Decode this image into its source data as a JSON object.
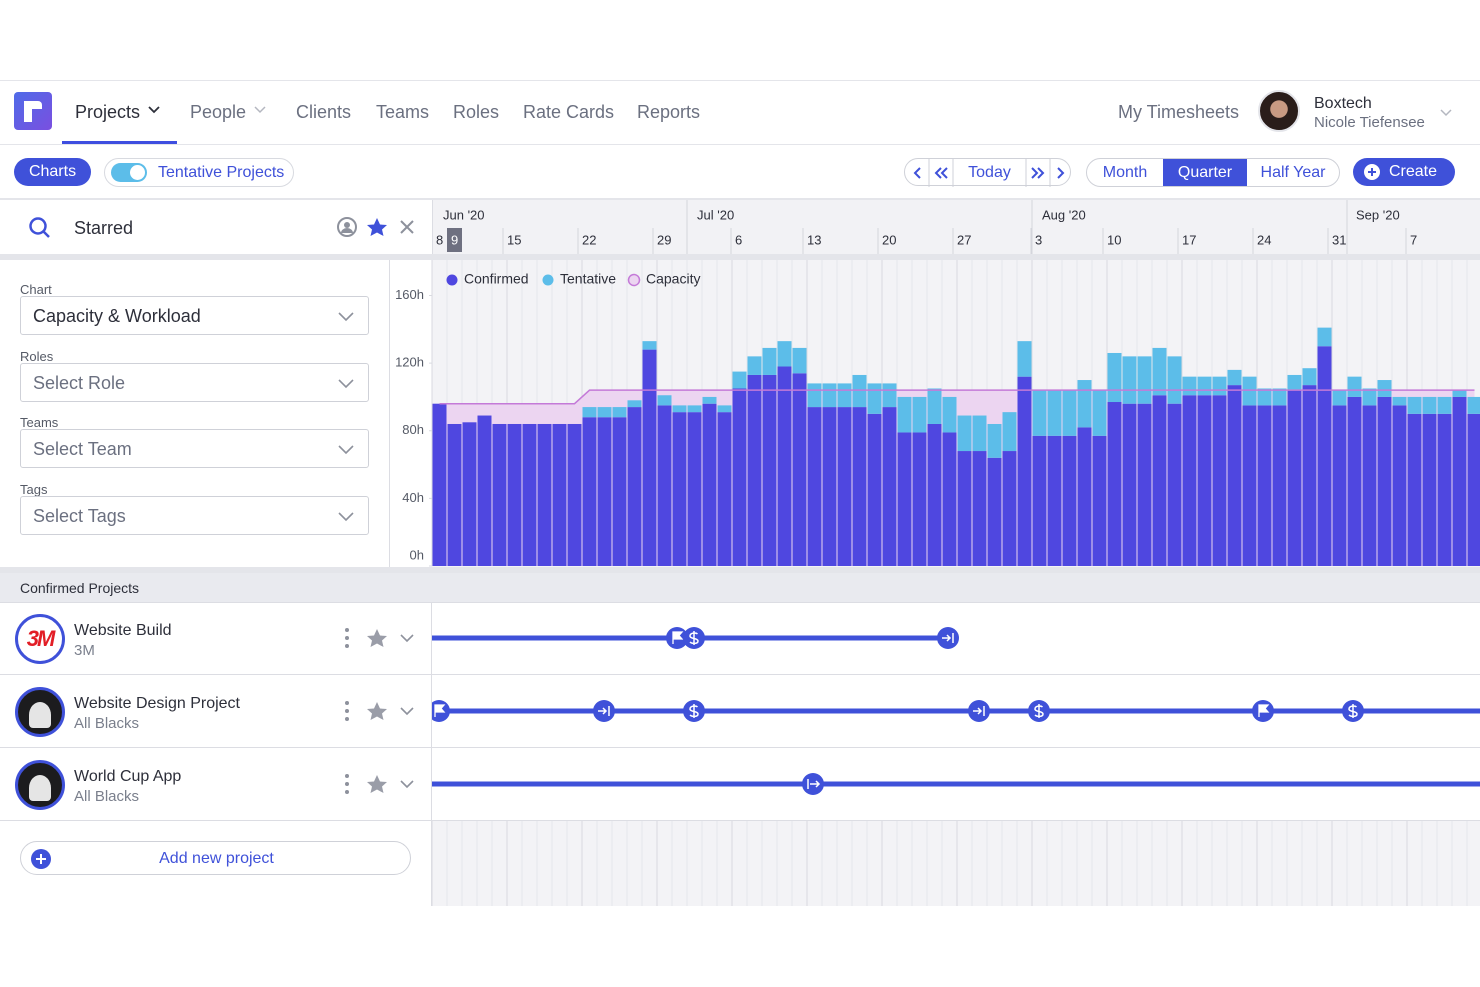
{
  "nav": {
    "items": [
      "Projects",
      "People",
      "Clients",
      "Teams",
      "Roles",
      "Rate Cards",
      "Reports"
    ],
    "timesheets": "My Timesheets",
    "company": "Boxtech",
    "user": "Nicole Tiefensee"
  },
  "toolbar": {
    "charts": "Charts",
    "tentative_toggle": "Tentative Projects",
    "today": "Today",
    "views": [
      "Month",
      "Quarter",
      "Half Year"
    ],
    "active_view": "Quarter",
    "create": "Create"
  },
  "search": {
    "query": "Starred"
  },
  "timeline": {
    "months": [
      "Jun '20",
      "Jul '20",
      "Aug '20",
      "Sep '20"
    ],
    "days": [
      "8",
      "9",
      "15",
      "22",
      "29",
      "6",
      "13",
      "20",
      "27",
      "3",
      "10",
      "17",
      "24",
      "31",
      "7"
    ]
  },
  "filters": [
    {
      "label": "Chart",
      "value": "Capacity & Workload"
    },
    {
      "label": "Roles",
      "value": "Select Role"
    },
    {
      "label": "Teams",
      "value": "Select Team"
    },
    {
      "label": "Tags",
      "value": "Select Tags"
    }
  ],
  "chart_data": {
    "type": "bar",
    "stacked": true,
    "series": [
      {
        "name": "Confirmed",
        "color": "#4f47e0",
        "values": [
          96,
          84,
          85,
          89,
          84,
          84,
          84,
          84,
          84,
          84,
          88,
          88,
          88,
          94,
          128,
          95,
          91,
          91,
          96,
          91,
          105,
          113,
          113,
          118,
          114,
          94,
          94,
          94,
          94,
          90,
          94,
          79,
          79,
          84,
          79,
          68,
          68,
          64,
          68,
          112,
          77,
          77,
          77,
          82,
          77,
          97,
          96,
          96,
          101,
          96,
          101,
          101,
          101,
          107,
          95,
          95,
          95,
          104,
          107,
          130,
          95,
          100,
          95,
          100,
          95,
          90,
          90,
          90,
          100,
          90
        ]
      },
      {
        "name": "Tentative",
        "color": "#5cbde9",
        "values": [
          0,
          0,
          0,
          0,
          0,
          0,
          0,
          0,
          0,
          0,
          6,
          6,
          6,
          4,
          5,
          6,
          4,
          4,
          4,
          4,
          10,
          11,
          16,
          15,
          15,
          14,
          14,
          14,
          19,
          18,
          14,
          21,
          21,
          21,
          21,
          21,
          21,
          20,
          23,
          21,
          27,
          27,
          27,
          28,
          27,
          29,
          28,
          28,
          28,
          28,
          11,
          11,
          11,
          9,
          17,
          10,
          10,
          9,
          10,
          11,
          9,
          12,
          10,
          10,
          5,
          10,
          10,
          10,
          4,
          10
        ]
      },
      {
        "name": "Capacity",
        "color": "#c47ad8",
        "kind": "line",
        "values": [
          96,
          96,
          96,
          96,
          96,
          96,
          96,
          96,
          96,
          96,
          104,
          104,
          104,
          104,
          104,
          104,
          104,
          104,
          104,
          104,
          104,
          104,
          104,
          104,
          104,
          104,
          104,
          104,
          104,
          104,
          104,
          104,
          104,
          104,
          104,
          104,
          104,
          104,
          104,
          104,
          104,
          104,
          104,
          104,
          104,
          104,
          104,
          104,
          104,
          104,
          104,
          104,
          104,
          104,
          104,
          104,
          104,
          104,
          104,
          104,
          104,
          104,
          104,
          104,
          104,
          104,
          104,
          104,
          104,
          104
        ]
      }
    ],
    "ylim": [
      0,
      181
    ],
    "yticks": [
      {
        "value": 0,
        "label": "0h"
      },
      {
        "value": 40,
        "label": "40h"
      },
      {
        "value": 80,
        "label": "80h"
      },
      {
        "value": 120,
        "label": "120h"
      },
      {
        "value": 160,
        "label": "160h"
      }
    ]
  },
  "projects": {
    "title": "Confirmed Projects",
    "items": [
      {
        "name": "Website Build",
        "client": "3M",
        "logo": "3M"
      },
      {
        "name": "Website Design Project",
        "client": "All Blacks"
      },
      {
        "name": "World Cup App",
        "client": "All Blacks"
      }
    ],
    "add": "Add new project"
  }
}
